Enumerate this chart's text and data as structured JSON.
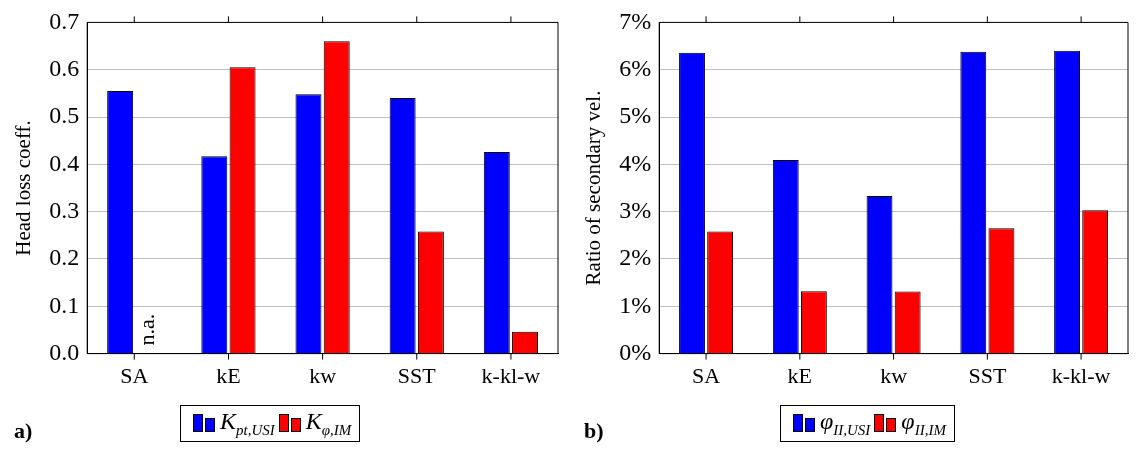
{
  "chart_data": [
    {
      "type": "bar",
      "title": "a)",
      "ylabel": "Head loss coeff.",
      "categories": [
        "SA",
        "kE",
        "kw",
        "SST",
        "k-kl-w"
      ],
      "series": [
        {
          "name": "K$_{pt,USI}$",
          "color": "#0000ff",
          "values": [
            0.555,
            0.417,
            0.548,
            0.54,
            0.426
          ]
        },
        {
          "name": "K$_{φ,IM}$",
          "color": "#ff0000",
          "values": [
            null,
            0.605,
            0.66,
            0.258,
            0.046
          ]
        }
      ],
      "annotations": [
        {
          "text": "n.a.",
          "x": "SA",
          "y": 0
        }
      ],
      "ylim": [
        0,
        0.7
      ],
      "yticks": [
        {
          "value": 0,
          "label": "0.0"
        },
        0.1,
        0.2,
        0.3,
        0.4,
        0.5,
        0.6,
        0.7
      ],
      "grid": "y",
      "legend": "bottom"
    },
    {
      "type": "bar",
      "title": "b)",
      "ylabel": "Ratio of secondary vel.",
      "categories": [
        "SA",
        "kE",
        "kw",
        "SST",
        "k-kl-w"
      ],
      "series": [
        {
          "name": "φ$_{II,USI}$",
          "color": "#0000ff",
          "values": [
            6.36,
            4.09,
            3.33,
            6.38,
            6.4
          ]
        },
        {
          "name": "φ$_{II,IM}$",
          "color": "#ff0000",
          "values": [
            2.58,
            1.32,
            1.31,
            2.65,
            3.03
          ]
        }
      ],
      "ylim": [
        0,
        7
      ],
      "yticks": [
        {
          "value": 0,
          "label": "0%"
        },
        {
          "value": 1,
          "label": "1%"
        },
        {
          "value": 2,
          "label": "2%"
        },
        {
          "value": 3,
          "label": "3%"
        },
        {
          "value": 4,
          "label": "4%"
        },
        {
          "value": 5,
          "label": "5%"
        },
        {
          "value": 6,
          "label": "6%"
        },
        {
          "value": 7,
          "label": "7%"
        }
      ],
      "grid": "y",
      "legend": "bottom"
    }
  ]
}
